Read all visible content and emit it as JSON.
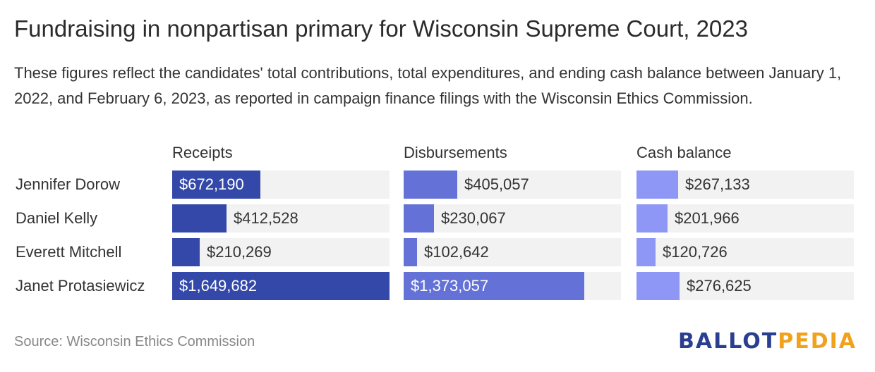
{
  "title": "Fundraising in nonpartisan primary for Wisconsin Supreme Court, 2023",
  "subtitle": "These figures reflect the candidates' total contributions, total expenditures, and ending cash balance between January 1, 2022, and February 6, 2023, as reported in campaign finance filings with the Wisconsin Ethics Commission.",
  "source": "Source: Wisconsin Ethics Commission",
  "logo": {
    "part1": "BALLOT",
    "part2": "PEDIA",
    "color1": "#2a3f8f",
    "color2": "#f0a21d"
  },
  "chart_data": {
    "type": "bar",
    "title": "Fundraising in nonpartisan primary for Wisconsin Supreme Court, 2023",
    "categories": [
      "Jennifer Dorow",
      "Daniel Kelly",
      "Everett Mitchell",
      "Janet Protasiewicz"
    ],
    "series": [
      {
        "name": "Receipts",
        "color": "#3348a8",
        "values": [
          672190,
          412528,
          210269,
          1649682
        ],
        "labels": [
          "$672,190",
          "$412,528",
          "$210,269",
          "$1,649,682"
        ],
        "xlim": [
          0,
          1649682
        ]
      },
      {
        "name": "Disbursements",
        "color": "#6472d8",
        "values": [
          405057,
          230067,
          102642,
          1373057
        ],
        "labels": [
          "$405,057",
          "$230,067",
          "$102,642",
          "$1,373,057"
        ],
        "xlim": [
          0,
          1649682
        ]
      },
      {
        "name": "Cash balance",
        "color": "#8e97f5",
        "values": [
          267133,
          201966,
          120726,
          276625
        ],
        "labels": [
          "$267,133",
          "$201,966",
          "$120,726",
          "$276,625"
        ],
        "xlim": [
          0,
          1400000
        ]
      }
    ],
    "grid": false,
    "legend": "none"
  }
}
